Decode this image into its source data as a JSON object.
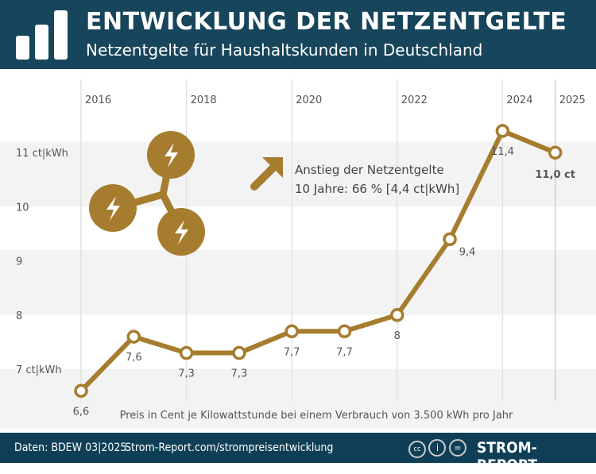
{
  "header": {
    "title": "ENTWICKLUNG DER NETZENTGELTE",
    "subtitle": "Netzentgelte für Haushaltskunden in Deutschland"
  },
  "annotation": {
    "line1": "Anstieg der Netzentgelte",
    "line2": "10 Jahre: 66 %  [4,4 ct|kWh]"
  },
  "footnote": "Preis in Cent je Kilowattstunde bei einem Verbrauch von 3.500 kWh pro Jahr",
  "footer": {
    "source": "Daten: BDEW 03|2025",
    "url": "Strom-Report.com/strompreisentwicklung",
    "brand": "STROM-REPORT",
    "license_icons": [
      "cc-icon",
      "by-icon",
      "nd-icon"
    ]
  },
  "colors": {
    "line": "#a67c2e",
    "header": "#17455c",
    "footer": "#0f3f57",
    "highlight": "#b5472b"
  },
  "chart_data": {
    "type": "line",
    "x": [
      2016,
      2017,
      2018,
      2019,
      2020,
      2021,
      2022,
      2023,
      2024,
      2025
    ],
    "values": [
      6.6,
      7.6,
      7.3,
      7.3,
      7.7,
      7.7,
      8,
      9.4,
      11.4,
      11.0
    ],
    "data_labels": [
      "6,6",
      "7,6",
      "7,3",
      "7,3",
      "7,7",
      "7,7",
      "8",
      "9,4",
      "11,4",
      "11,0 ct"
    ],
    "xticks": [
      "2016",
      "2018",
      "2020",
      "2022",
      "2024",
      "2025"
    ],
    "yticks": [
      {
        "v": 7,
        "label": "7 ct|kWh"
      },
      {
        "v": 8,
        "label": "8"
      },
      {
        "v": 9,
        "label": "9"
      },
      {
        "v": 10,
        "label": "10"
      },
      {
        "v": 11,
        "label": "11 ct|kWh"
      }
    ],
    "ylim": [
      6.4,
      11.8
    ],
    "grid": true
  }
}
